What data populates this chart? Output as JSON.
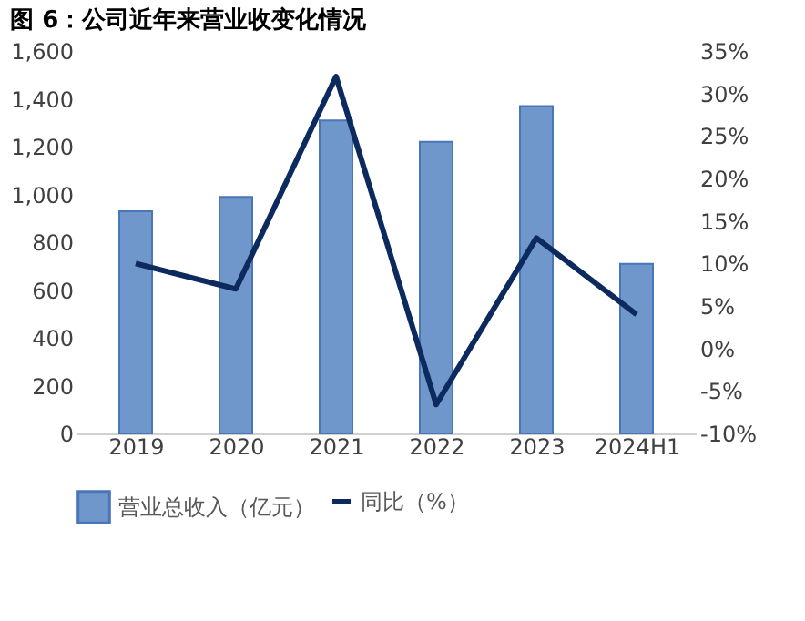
{
  "chart_data": {
    "type": "bar",
    "title": "图 6：公司近年来营业收变化情况",
    "categories": [
      "2019",
      "2020",
      "2021",
      "2022",
      "2023",
      "2024H1"
    ],
    "series": [
      {
        "name": "营业总收入（亿元）",
        "color": "#6f97cc",
        "values": [
          930,
          990,
          1310,
          1220,
          1370,
          710
        ]
      },
      {
        "name": "同比（%）",
        "type": "line",
        "axis": "y2",
        "color": "#0d2a5e",
        "values": [
          10,
          7,
          32,
          -6.6,
          13,
          4
        ]
      }
    ],
    "ylim": [
      0,
      1600
    ],
    "yticks": [
      {
        "value": 0,
        "label": "0"
      },
      {
        "value": 200,
        "label": "200"
      },
      {
        "value": 400,
        "label": "400"
      },
      {
        "value": 600,
        "label": "600"
      },
      {
        "value": 800,
        "label": "800"
      },
      {
        "value": 1000,
        "label": "1,000"
      },
      {
        "value": 1200,
        "label": "1,200"
      },
      {
        "value": 1400,
        "label": "1,400"
      },
      {
        "value": 1600,
        "label": "1,600"
      }
    ],
    "y2lim": [
      -10,
      35
    ],
    "y2ticks": [
      {
        "value": -10,
        "label": "-10%"
      },
      {
        "value": -5,
        "label": "-5%"
      },
      {
        "value": 0,
        "label": "0%"
      },
      {
        "value": 5,
        "label": "5%"
      },
      {
        "value": 10,
        "label": "10%"
      },
      {
        "value": 15,
        "label": "15%"
      },
      {
        "value": 20,
        "label": "20%"
      },
      {
        "value": 25,
        "label": "25%"
      },
      {
        "value": 30,
        "label": "30%"
      },
      {
        "value": 35,
        "label": "35%"
      }
    ],
    "grid": false,
    "legend": "bottom"
  }
}
